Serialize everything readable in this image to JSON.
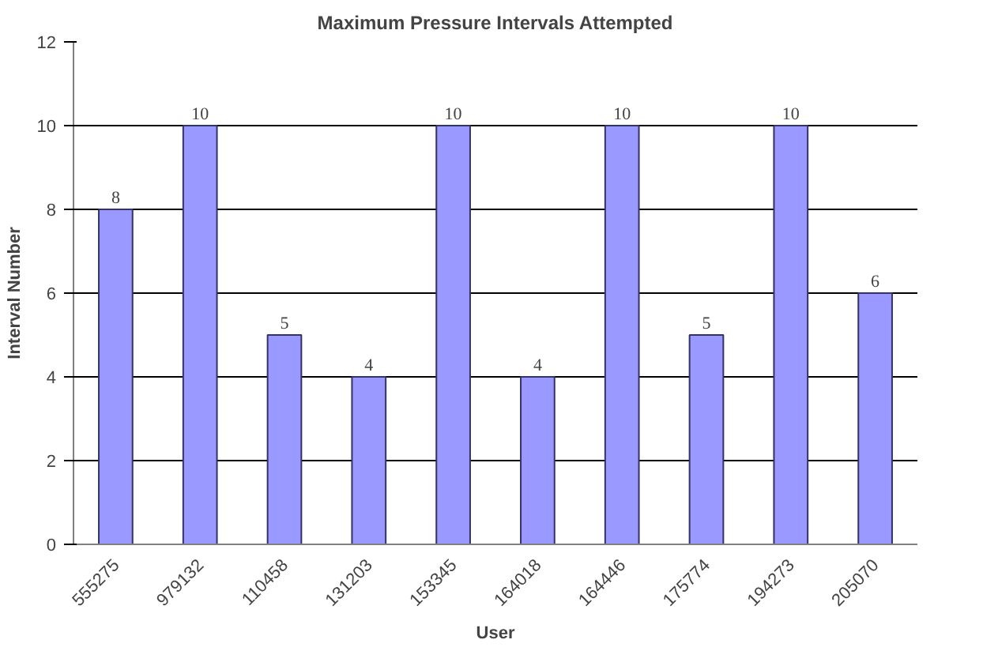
{
  "chart_data": {
    "type": "bar",
    "title": "Maximum Pressure Intervals Attempted",
    "xlabel": "User",
    "ylabel": "Interval Number",
    "categories": [
      "555275",
      "979132",
      "110458",
      "131203",
      "153345",
      "164018",
      "164446",
      "175774",
      "194273",
      "205070"
    ],
    "values": [
      8,
      10,
      5,
      4,
      10,
      4,
      10,
      5,
      10,
      6
    ],
    "color": "#9999ff",
    "ylim": [
      0,
      12
    ],
    "yticks": [
      0,
      2,
      4,
      6,
      8,
      10,
      12
    ],
    "grid": "y",
    "data_labels": true
  }
}
